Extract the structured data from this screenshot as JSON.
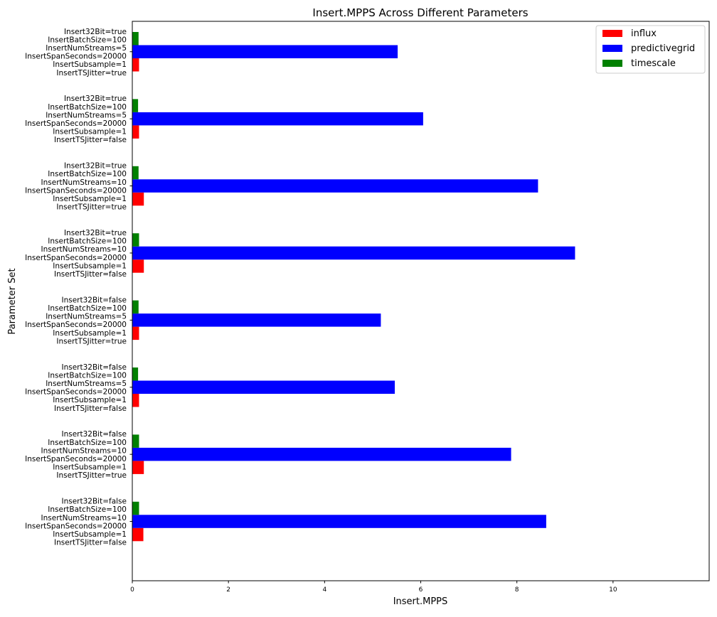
{
  "chart_data": {
    "type": "bar",
    "orientation": "horizontal",
    "title": "Insert.MPPS Across Different Parameters",
    "xlabel": "Insert.MPPS",
    "ylabel": "Parameter Set",
    "xlim": [
      0,
      12
    ],
    "xticks": [
      0,
      2,
      4,
      6,
      8,
      10
    ],
    "grid": false,
    "legend_position": "top-right",
    "categories": [
      [
        "Insert32Bit=true",
        "InsertBatchSize=100",
        "InsertNumStreams=5",
        "InsertSpanSeconds=20000",
        "InsertSubsample=1",
        "InsertTSJitter=true"
      ],
      [
        "Insert32Bit=true",
        "InsertBatchSize=100",
        "InsertNumStreams=5",
        "InsertSpanSeconds=20000",
        "InsertSubsample=1",
        "InsertTSJitter=false"
      ],
      [
        "Insert32Bit=true",
        "InsertBatchSize=100",
        "InsertNumStreams=10",
        "InsertSpanSeconds=20000",
        "InsertSubsample=1",
        "InsertTSJitter=true"
      ],
      [
        "Insert32Bit=true",
        "InsertBatchSize=100",
        "InsertNumStreams=10",
        "InsertSpanSeconds=20000",
        "InsertSubsample=1",
        "InsertTSJitter=false"
      ],
      [
        "Insert32Bit=false",
        "InsertBatchSize=100",
        "InsertNumStreams=5",
        "InsertSpanSeconds=20000",
        "InsertSubsample=1",
        "InsertTSJitter=true"
      ],
      [
        "Insert32Bit=false",
        "InsertBatchSize=100",
        "InsertNumStreams=5",
        "InsertSpanSeconds=20000",
        "InsertSubsample=1",
        "InsertTSJitter=false"
      ],
      [
        "Insert32Bit=false",
        "InsertBatchSize=100",
        "InsertNumStreams=10",
        "InsertSpanSeconds=20000",
        "InsertSubsample=1",
        "InsertTSJitter=true"
      ],
      [
        "Insert32Bit=false",
        "InsertBatchSize=100",
        "InsertNumStreams=10",
        "InsertSpanSeconds=20000",
        "InsertSubsample=1",
        "InsertTSJitter=false"
      ]
    ],
    "series": [
      {
        "name": "influx",
        "color": "#ff0000",
        "values": [
          0.14,
          0.14,
          0.24,
          0.24,
          0.14,
          0.14,
          0.24,
          0.23
        ]
      },
      {
        "name": "predictivegrid",
        "color": "#0000ff",
        "values": [
          5.52,
          6.05,
          8.44,
          9.21,
          5.17,
          5.46,
          7.88,
          8.61
        ]
      },
      {
        "name": "timescale",
        "color": "#008000",
        "values": [
          0.13,
          0.12,
          0.13,
          0.14,
          0.13,
          0.12,
          0.14,
          0.14
        ]
      }
    ]
  }
}
